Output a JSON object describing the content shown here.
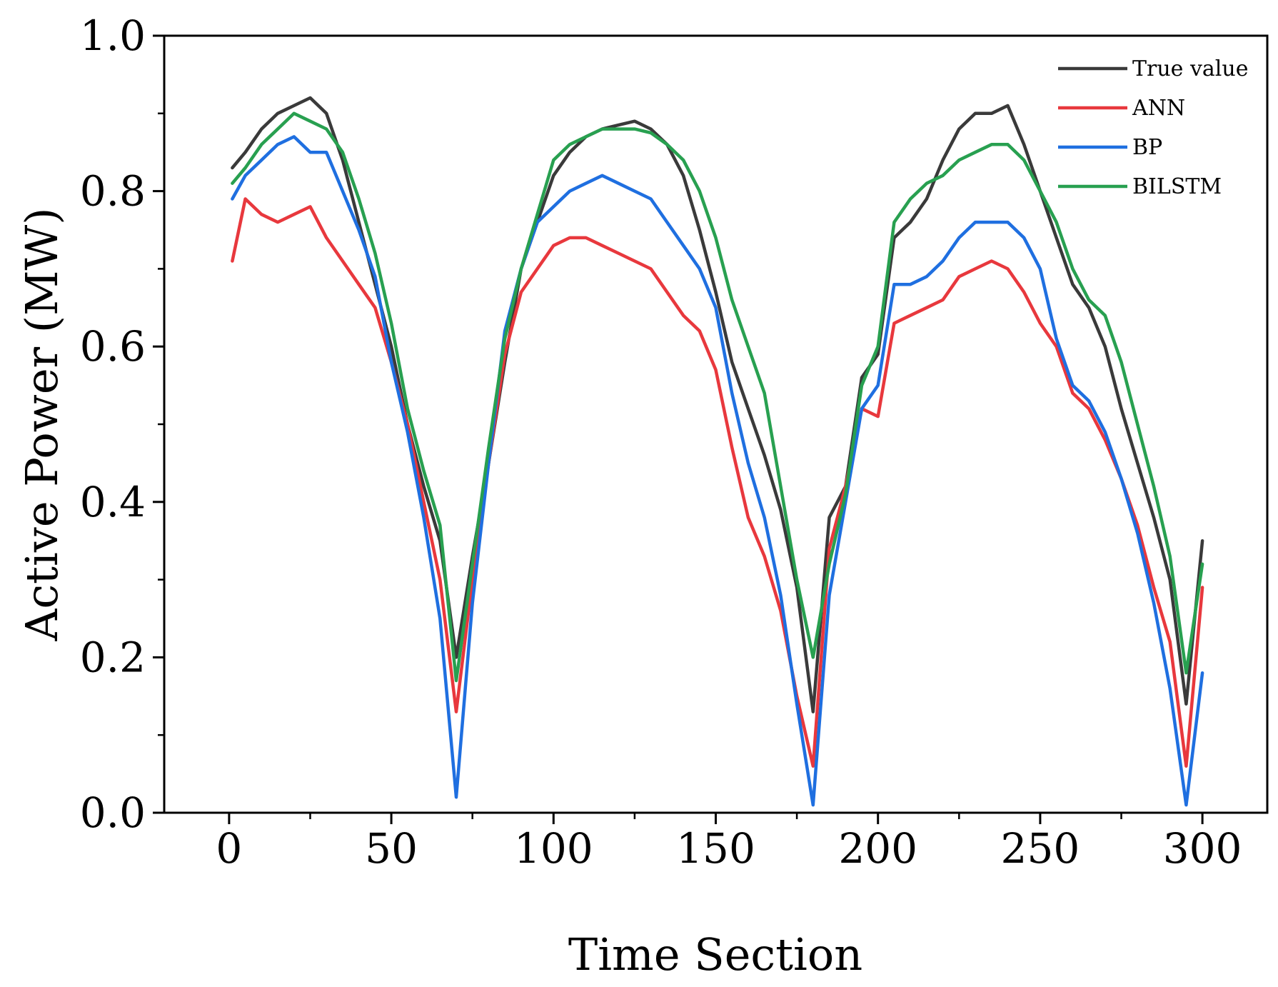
{
  "chart_data": {
    "type": "line",
    "title": "",
    "xlabel": "Time Section",
    "ylabel": "Active Power (MW)",
    "xlim": [
      -20,
      320
    ],
    "ylim": [
      0.0,
      1.0
    ],
    "x_ticks": [
      0,
      50,
      100,
      150,
      200,
      250,
      300
    ],
    "x_tick_labels": [
      "0",
      "50",
      "100",
      "150",
      "200",
      "250",
      "300"
    ],
    "y_ticks": [
      0.0,
      0.2,
      0.4,
      0.6,
      0.8,
      1.0
    ],
    "y_tick_labels": [
      "0.0",
      "0.2",
      "0.4",
      "0.6",
      "0.8",
      "1.0"
    ],
    "grid": false,
    "legend_position": "top-right",
    "x": [
      1,
      5,
      10,
      15,
      20,
      25,
      30,
      35,
      40,
      45,
      50,
      55,
      60,
      65,
      70,
      75,
      80,
      85,
      90,
      95,
      100,
      105,
      110,
      115,
      120,
      125,
      130,
      135,
      140,
      145,
      150,
      155,
      160,
      165,
      170,
      175,
      180,
      185,
      190,
      195,
      200,
      205,
      210,
      215,
      220,
      225,
      230,
      235,
      240,
      245,
      250,
      255,
      260,
      265,
      270,
      275,
      280,
      285,
      290,
      295,
      300
    ],
    "series": [
      {
        "name": "True value",
        "color": "#3a3a3a",
        "values": [
          0.83,
          0.85,
          0.88,
          0.9,
          0.91,
          0.92,
          0.9,
          0.84,
          0.76,
          0.68,
          0.6,
          0.5,
          0.42,
          0.35,
          0.2,
          0.33,
          0.45,
          0.58,
          0.7,
          0.76,
          0.82,
          0.85,
          0.87,
          0.88,
          0.885,
          0.89,
          0.88,
          0.86,
          0.82,
          0.75,
          0.67,
          0.58,
          0.52,
          0.46,
          0.39,
          0.29,
          0.13,
          0.38,
          0.42,
          0.56,
          0.59,
          0.74,
          0.76,
          0.79,
          0.84,
          0.88,
          0.9,
          0.9,
          0.91,
          0.86,
          0.8,
          0.74,
          0.68,
          0.65,
          0.6,
          0.52,
          0.45,
          0.38,
          0.3,
          0.14,
          0.35
        ]
      },
      {
        "name": "ANN",
        "color": "#e8383d",
        "values": [
          0.71,
          0.79,
          0.77,
          0.76,
          0.77,
          0.78,
          0.74,
          0.71,
          0.68,
          0.65,
          0.58,
          0.5,
          0.4,
          0.3,
          0.13,
          0.3,
          0.45,
          0.59,
          0.67,
          0.7,
          0.73,
          0.74,
          0.74,
          0.73,
          0.72,
          0.71,
          0.7,
          0.67,
          0.64,
          0.62,
          0.57,
          0.47,
          0.38,
          0.33,
          0.26,
          0.15,
          0.06,
          0.34,
          0.42,
          0.52,
          0.51,
          0.63,
          0.64,
          0.65,
          0.66,
          0.69,
          0.7,
          0.71,
          0.7,
          0.67,
          0.63,
          0.6,
          0.54,
          0.52,
          0.48,
          0.43,
          0.37,
          0.29,
          0.22,
          0.06,
          0.29
        ]
      },
      {
        "name": "BP",
        "color": "#1f6fe0",
        "values": [
          0.79,
          0.82,
          0.84,
          0.86,
          0.87,
          0.85,
          0.85,
          0.8,
          0.75,
          0.69,
          0.58,
          0.49,
          0.38,
          0.25,
          0.02,
          0.27,
          0.45,
          0.62,
          0.7,
          0.76,
          0.78,
          0.8,
          0.81,
          0.82,
          0.81,
          0.8,
          0.79,
          0.76,
          0.73,
          0.7,
          0.65,
          0.54,
          0.45,
          0.38,
          0.28,
          0.14,
          0.01,
          0.28,
          0.4,
          0.52,
          0.55,
          0.68,
          0.68,
          0.69,
          0.71,
          0.74,
          0.76,
          0.76,
          0.76,
          0.74,
          0.7,
          0.61,
          0.55,
          0.53,
          0.49,
          0.43,
          0.36,
          0.27,
          0.16,
          0.01,
          0.18
        ]
      },
      {
        "name": "BILSTM",
        "color": "#28a050",
        "values": [
          0.81,
          0.83,
          0.86,
          0.88,
          0.9,
          0.89,
          0.88,
          0.85,
          0.79,
          0.72,
          0.63,
          0.52,
          0.44,
          0.37,
          0.17,
          0.32,
          0.47,
          0.61,
          0.7,
          0.77,
          0.84,
          0.86,
          0.87,
          0.88,
          0.88,
          0.88,
          0.875,
          0.86,
          0.84,
          0.8,
          0.74,
          0.66,
          0.6,
          0.54,
          0.42,
          0.3,
          0.2,
          0.32,
          0.41,
          0.55,
          0.6,
          0.76,
          0.79,
          0.81,
          0.82,
          0.84,
          0.85,
          0.86,
          0.86,
          0.84,
          0.8,
          0.76,
          0.7,
          0.66,
          0.64,
          0.58,
          0.5,
          0.42,
          0.33,
          0.18,
          0.32
        ]
      }
    ]
  }
}
